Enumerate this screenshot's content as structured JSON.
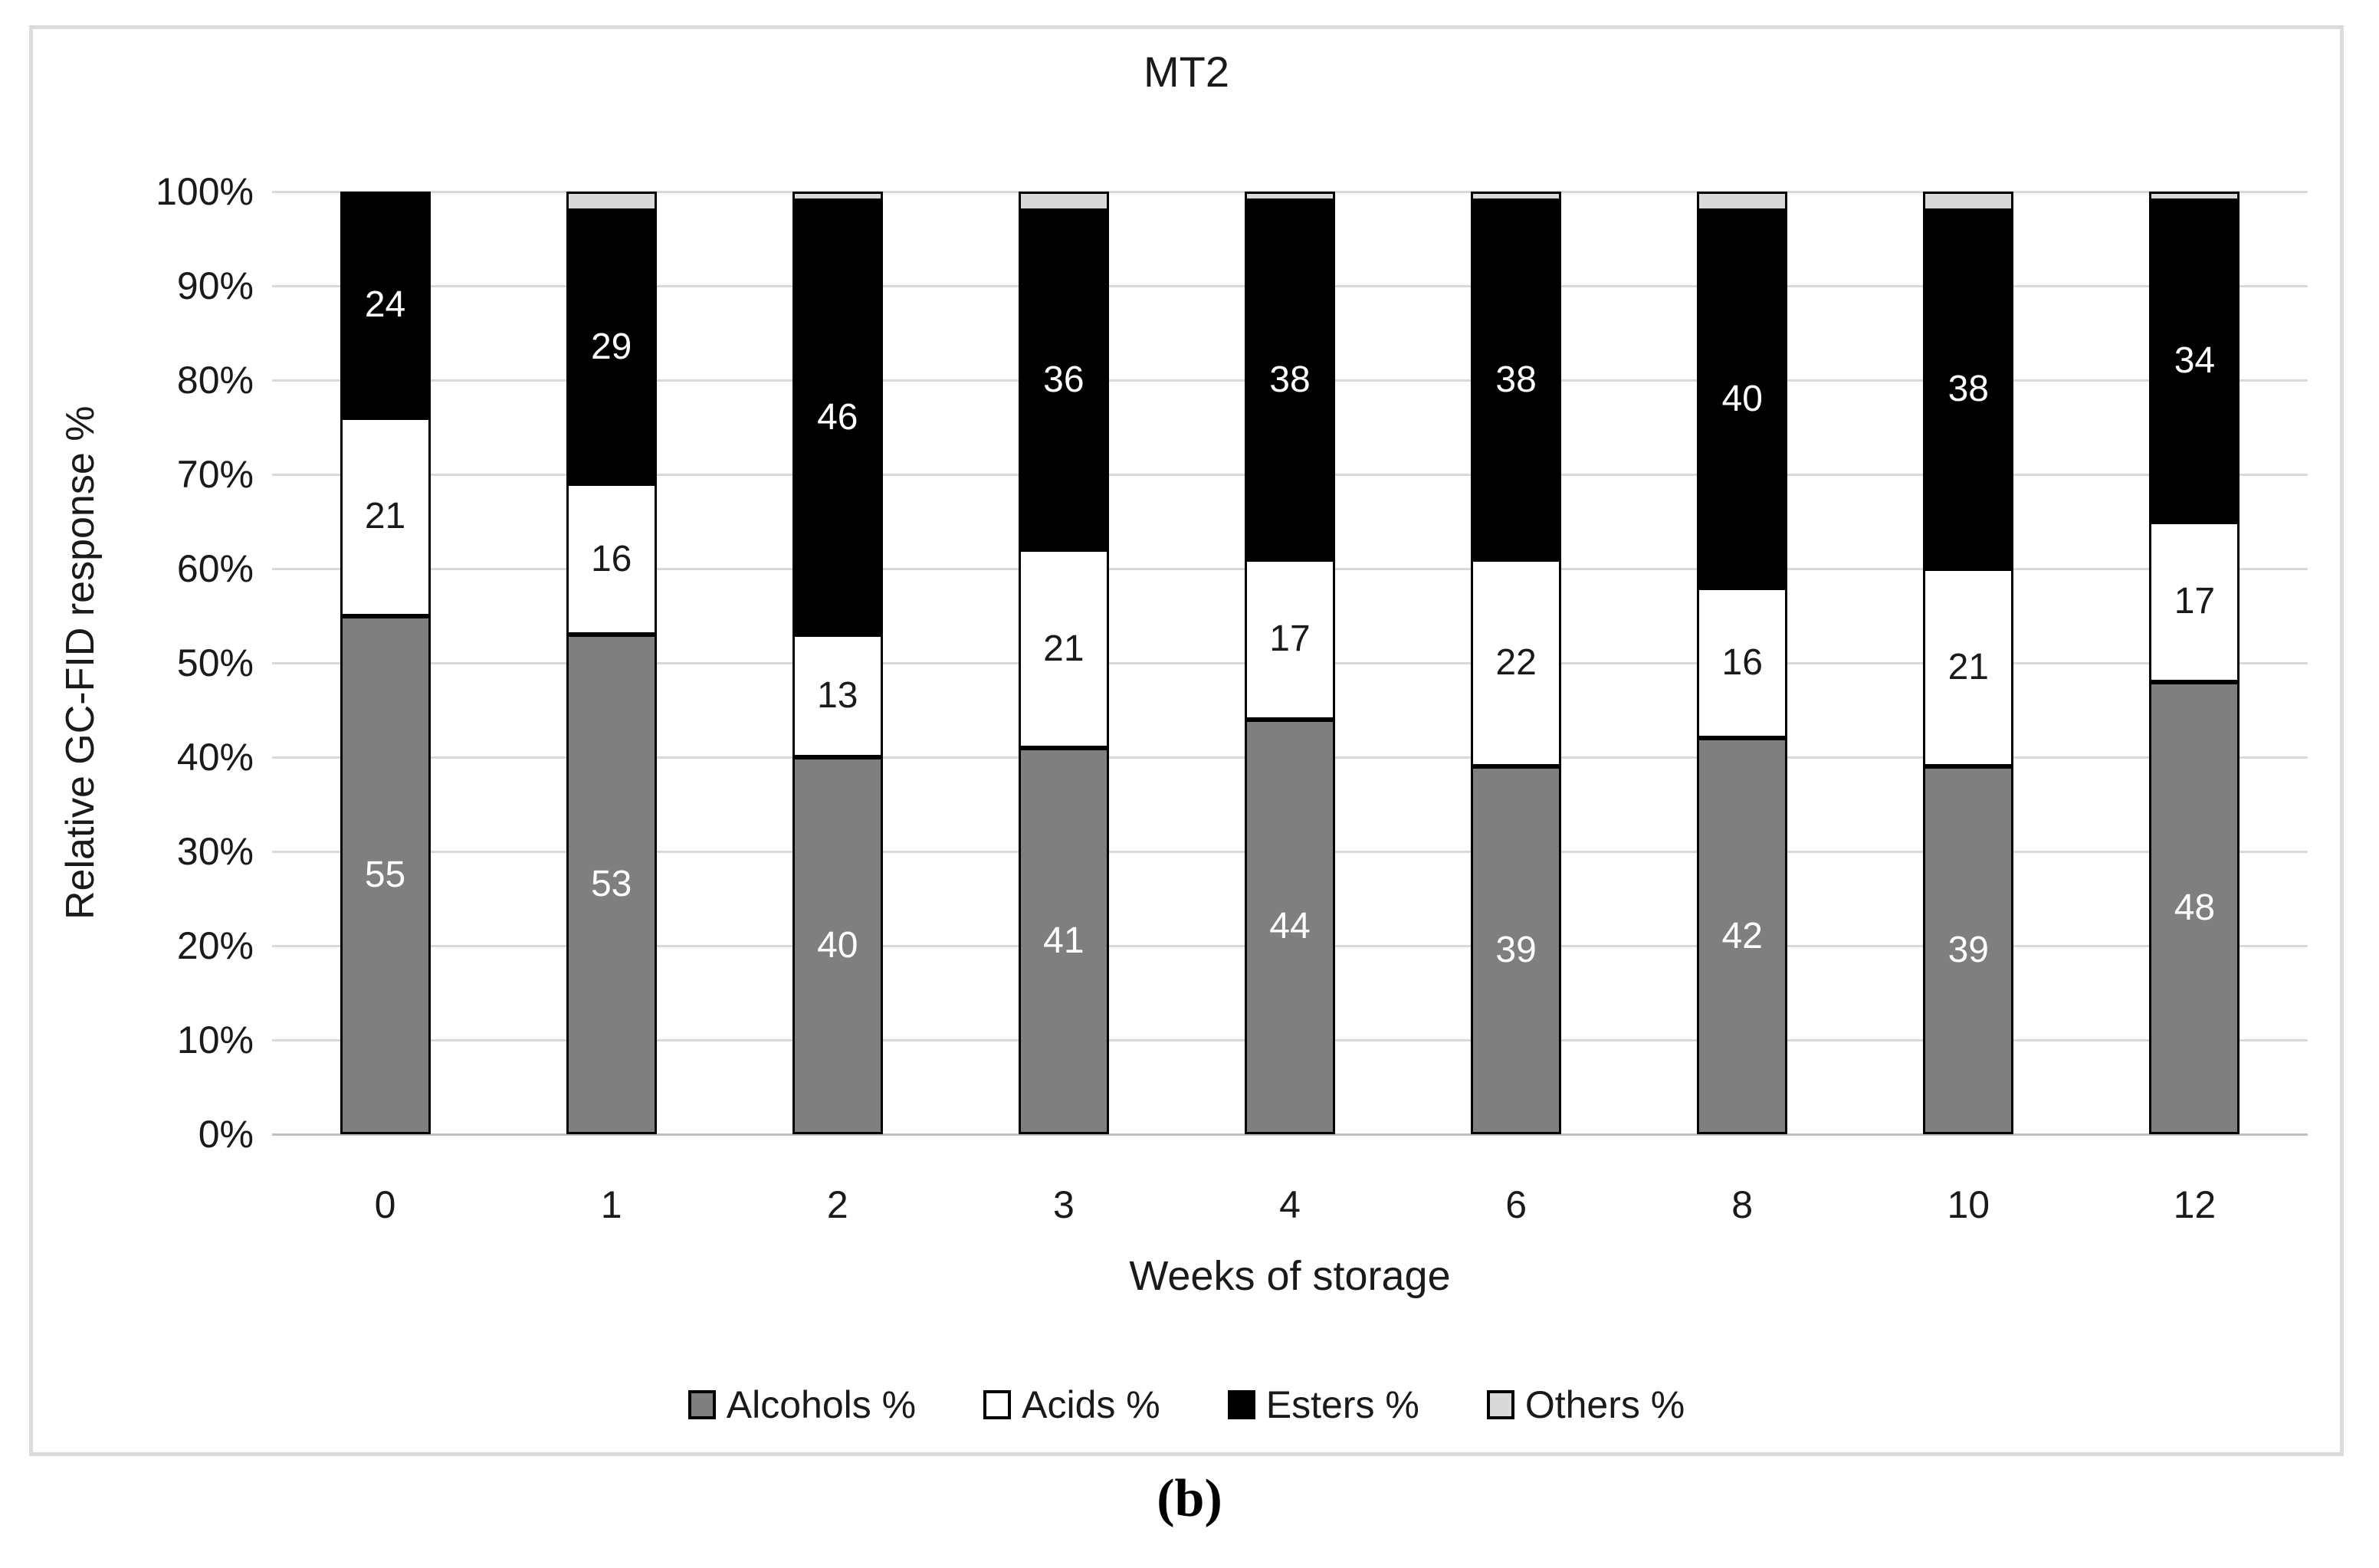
{
  "figure": {
    "caption": "(b)"
  },
  "chart_data": {
    "type": "bar",
    "stacked": true,
    "title": "MT2",
    "xlabel": "Weeks of storage",
    "ylabel": "Relative GC-FID response %",
    "categories": [
      "0",
      "1",
      "2",
      "3",
      "4",
      "6",
      "8",
      "10",
      "12"
    ],
    "series": [
      {
        "name": "Alcohols %",
        "color": "#7f7f7f",
        "label_color": "#ffffff",
        "show_labels": true,
        "values": [
          55,
          53,
          40,
          41,
          44,
          39,
          42,
          39,
          48
        ]
      },
      {
        "name": "Acids %",
        "color": "#ffffff",
        "label_color": "#1a1a1a",
        "show_labels": true,
        "values": [
          21,
          16,
          13,
          21,
          17,
          22,
          16,
          21,
          17
        ]
      },
      {
        "name": "Esters %",
        "color": "#000000",
        "label_color": "#ffffff",
        "show_labels": true,
        "values": [
          24,
          29,
          46,
          36,
          38,
          38,
          40,
          38,
          34
        ]
      },
      {
        "name": "Others %",
        "color": "#d9d9d9",
        "label_color": "#1a1a1a",
        "show_labels": false,
        "values": [
          0,
          2,
          1,
          2,
          1,
          1,
          2,
          2,
          1
        ]
      }
    ],
    "ylim": [
      0,
      100
    ],
    "yticks": [
      "0%",
      "10%",
      "20%",
      "30%",
      "40%",
      "50%",
      "60%",
      "70%",
      "80%",
      "90%",
      "100%"
    ],
    "grid": true,
    "legend_position": "bottom"
  }
}
